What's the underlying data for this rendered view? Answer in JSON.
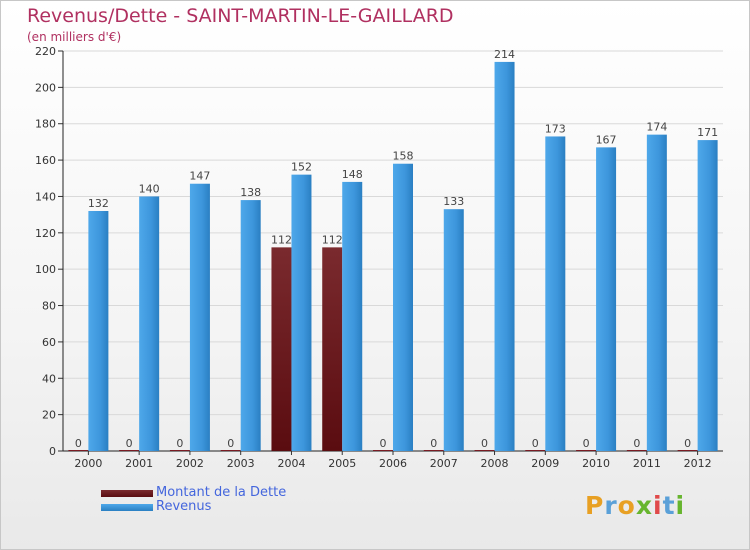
{
  "title": "Revenus/Dette - SAINT-MARTIN-LE-GAILLARD",
  "subtitle": "(en milliers d'€)",
  "logo": "Proxiti",
  "chart_data": {
    "type": "bar",
    "categories": [
      "2000",
      "2001",
      "2002",
      "2003",
      "2004",
      "2005",
      "2006",
      "2007",
      "2008",
      "2009",
      "2010",
      "2011",
      "2012"
    ],
    "series": [
      {
        "name": "Montant de la Dette",
        "color": "#7a1c24",
        "values": [
          0,
          0,
          0,
          0,
          112,
          112,
          0,
          0,
          0,
          0,
          0,
          0,
          0
        ]
      },
      {
        "name": "Revenus",
        "color": "#3d96dc",
        "values": [
          132,
          140,
          147,
          138,
          152,
          148,
          158,
          133,
          214,
          173,
          167,
          174,
          171
        ]
      }
    ],
    "ylim": [
      0,
      220
    ],
    "yticks": [
      0,
      20,
      40,
      60,
      80,
      100,
      120,
      140,
      160,
      180,
      200,
      220
    ],
    "grid": true,
    "legend_position": "bottom-left"
  }
}
